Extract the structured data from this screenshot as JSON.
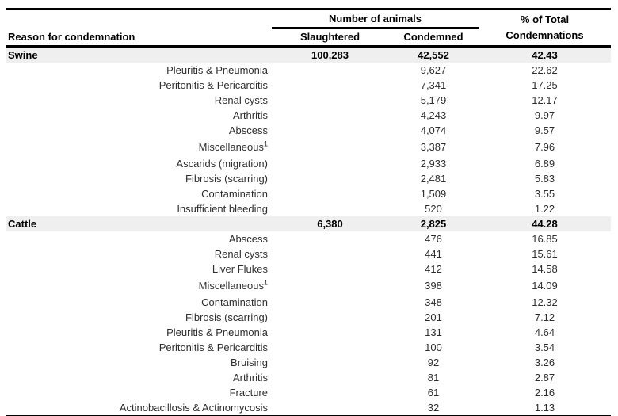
{
  "table": {
    "headers": {
      "reason": "Reason for condemnation",
      "animals_group": "Number of animals",
      "slaughtered": "Slaughtered",
      "condemned": "Condemned",
      "pct_total_line1": "% of Total",
      "pct_total_line2": "Condemnations"
    },
    "sections": [
      {
        "name": "Swine",
        "slaughtered": "100,283",
        "condemned": "42,552",
        "pct": "42.43",
        "rows": [
          {
            "reason": "Pleuritis & Pneumonia",
            "condemned": "9,627",
            "pct": "22.62"
          },
          {
            "reason": "Peritonitis & Pericarditis",
            "condemned": "7,341",
            "pct": "17.25"
          },
          {
            "reason": "Renal cysts",
            "condemned": "5,179",
            "pct": "12.17"
          },
          {
            "reason": "Arthritis",
            "condemned": "4,243",
            "pct": "9.97"
          },
          {
            "reason": "Abscess",
            "condemned": "4,074",
            "pct": "9.57"
          },
          {
            "reason": "Miscellaneous",
            "sup": "1",
            "condemned": "3,387",
            "pct": "7.96"
          },
          {
            "reason": "Ascarids (migration)",
            "condemned": "2,933",
            "pct": "6.89"
          },
          {
            "reason": "Fibrosis (scarring)",
            "condemned": "2,481",
            "pct": "5.83"
          },
          {
            "reason": "Contamination",
            "condemned": "1,509",
            "pct": "3.55"
          },
          {
            "reason": "Insufficient bleeding",
            "condemned": "520",
            "pct": "1.22"
          }
        ]
      },
      {
        "name": "Cattle",
        "slaughtered": "6,380",
        "condemned": "2,825",
        "pct": "44.28",
        "rows": [
          {
            "reason": "Abscess",
            "condemned": "476",
            "pct": "16.85"
          },
          {
            "reason": "Renal cysts",
            "condemned": "441",
            "pct": "15.61"
          },
          {
            "reason": "Liver Flukes",
            "condemned": "412",
            "pct": "14.58"
          },
          {
            "reason": "Miscellaneous",
            "sup": "1",
            "condemned": "398",
            "pct": "14.09"
          },
          {
            "reason": "Contamination",
            "condemned": "348",
            "pct": "12.32"
          },
          {
            "reason": "Fibrosis (scarring)",
            "condemned": "201",
            "pct": "7.12"
          },
          {
            "reason": "Pleuritis & Pneumonia",
            "condemned": "131",
            "pct": "4.64"
          },
          {
            "reason": "Peritonitis & Pericarditis",
            "condemned": "100",
            "pct": "3.54"
          },
          {
            "reason": "Bruising",
            "condemned": "92",
            "pct": "3.26"
          },
          {
            "reason": "Arthritis",
            "condemned": "81",
            "pct": "2.87"
          },
          {
            "reason": "Fracture",
            "condemned": "61",
            "pct": "2.16"
          },
          {
            "reason": "Actinobacillosis & Actinomycosis",
            "condemned": "32",
            "pct": "1.13"
          }
        ]
      }
    ]
  },
  "colors": {
    "section_row_bg": "#efefef",
    "rule": "#000000",
    "body_text": "#2e2e2e"
  }
}
